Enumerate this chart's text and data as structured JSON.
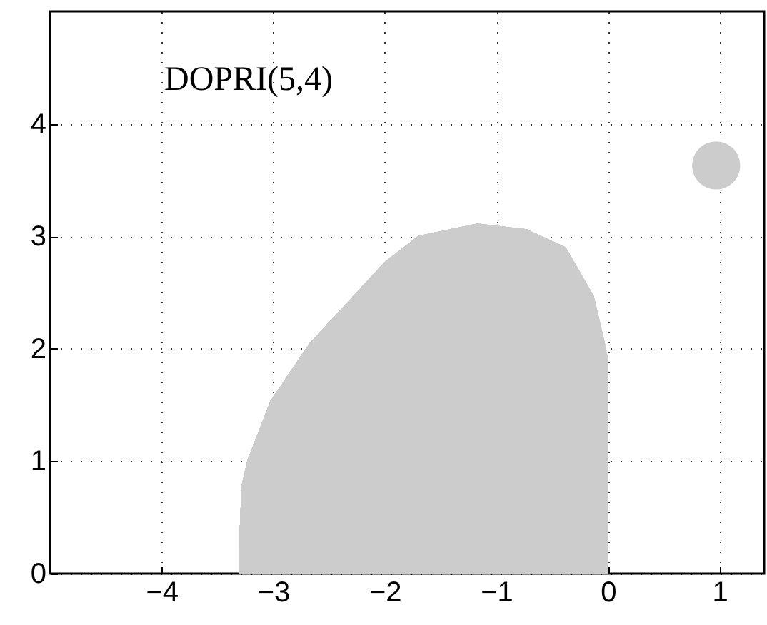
{
  "chart_data": {
    "type": "area",
    "xlim": [
      -5,
      1.4
    ],
    "ylim": [
      0,
      5
    ],
    "xticks": [
      -4,
      -3,
      -2,
      -1,
      0,
      1
    ],
    "yticks": [
      0,
      1,
      2,
      3,
      4
    ],
    "grid": true,
    "annotations": [
      "DOPRI(5,4)"
    ],
    "series": [
      {
        "color": "#cccccc",
        "x": [
          -3.3,
          -3.3,
          -3.28,
          -3.23,
          -3.02,
          -2.67,
          -2.0,
          -1.7,
          -1.17,
          -0.73,
          -0.38,
          -0.13,
          -0.03,
          0,
          0
        ],
        "values": [
          0,
          0.3,
          0.78,
          1.0,
          1.54,
          2.05,
          2.77,
          3.0,
          3.11,
          3.06,
          2.9,
          2.47,
          2.05,
          1.9,
          0
        ]
      },
      {
        "type": "scatter",
        "color": "#cccccc",
        "marker": "circle",
        "x": [
          0.97
        ],
        "values": [
          3.63
        ]
      }
    ]
  }
}
